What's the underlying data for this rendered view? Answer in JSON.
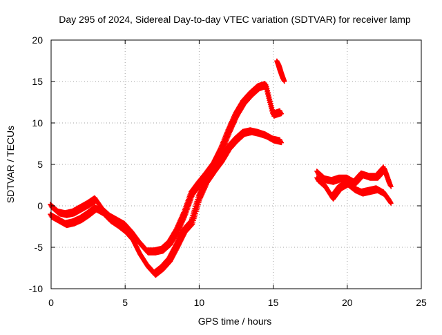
{
  "chart_data": {
    "type": "scatter",
    "title": "Day 295 of 2024, Sidereal Day-to-day VTEC variation (SDTVAR) for receiver lamp",
    "xlabel": "GPS time / hours",
    "ylabel": "SDTVAR / TECUs",
    "xlim": [
      0,
      25
    ],
    "ylim": [
      -10,
      20
    ],
    "xticks": [
      "0",
      "5",
      "10",
      "15",
      "20",
      "25"
    ],
    "yticks": [
      "-10",
      "-5",
      "0",
      "5",
      "10",
      "15",
      "20"
    ],
    "grid": true,
    "marker": "plus",
    "series": [
      {
        "name": "SDTVAR upper envelope",
        "color": "#ff0000",
        "x": [
          0.0,
          0.5,
          1.0,
          1.5,
          2.0,
          2.5,
          3.0,
          3.5,
          4.0,
          4.5,
          5.0,
          5.5,
          6.0,
          6.5,
          7.0,
          7.5,
          8.0,
          8.5,
          9.0,
          9.5,
          10.0,
          10.5,
          11.0,
          11.5,
          12.0,
          12.5,
          13.0,
          13.5,
          14.0,
          14.5,
          15.0,
          15.5
        ],
        "y": [
          0.0,
          -0.8,
          -1.0,
          -0.8,
          -0.3,
          0.2,
          0.8,
          -0.5,
          -1.3,
          -1.8,
          -2.3,
          -3.3,
          -4.5,
          -5.5,
          -5.5,
          -5.3,
          -4.5,
          -3.0,
          -1.0,
          1.5,
          2.7,
          3.8,
          5.0,
          6.8,
          9.0,
          11.0,
          12.5,
          13.5,
          14.3,
          14.6,
          11.0,
          11.3
        ]
      },
      {
        "name": "SDTVAR lower envelope",
        "color": "#ff0000",
        "x": [
          0.0,
          0.5,
          1.0,
          1.5,
          2.0,
          2.5,
          3.0,
          3.5,
          4.0,
          4.5,
          5.0,
          5.5,
          6.0,
          6.5,
          7.0,
          7.5,
          8.0,
          8.5,
          9.0,
          9.5,
          10.0,
          10.5,
          11.0,
          11.5,
          12.0,
          12.5,
          13.0,
          13.5,
          14.0,
          14.5,
          15.0,
          15.5
        ],
        "y": [
          -1.2,
          -1.7,
          -2.2,
          -2.0,
          -1.6,
          -1.0,
          -0.3,
          -0.8,
          -1.7,
          -2.3,
          -3.0,
          -4.0,
          -5.8,
          -7.2,
          -8.2,
          -7.5,
          -6.5,
          -4.8,
          -3.0,
          -2.0,
          1.0,
          3.0,
          4.3,
          5.5,
          7.0,
          8.0,
          8.8,
          9.0,
          8.8,
          8.5,
          8.0,
          7.8
        ]
      },
      {
        "name": "SDTVAR late-evening trace",
        "color": "#ff0000",
        "x": [
          15.3,
          15.4,
          15.5,
          15.6,
          15.7
        ],
        "y": [
          17.3,
          16.8,
          16.2,
          15.7,
          15.2
        ]
      },
      {
        "name": "SDTVAR night trace A",
        "color": "#ff0000",
        "x": [
          18.0,
          18.5,
          19.0,
          19.5,
          20.0,
          20.5,
          21.0,
          21.5,
          22.0,
          22.5,
          22.9
        ],
        "y": [
          4.0,
          3.2,
          3.0,
          3.3,
          3.3,
          2.8,
          3.8,
          3.5,
          3.5,
          4.5,
          2.5
        ]
      },
      {
        "name": "SDTVAR night trace B",
        "color": "#ff0000",
        "x": [
          18.0,
          18.5,
          19.0,
          19.5,
          20.0,
          20.5,
          21.0,
          21.5,
          22.0,
          22.5,
          22.9
        ],
        "y": [
          3.2,
          2.4,
          1.0,
          2.2,
          2.7,
          2.0,
          1.6,
          1.8,
          2.0,
          1.5,
          0.5
        ]
      }
    ]
  }
}
